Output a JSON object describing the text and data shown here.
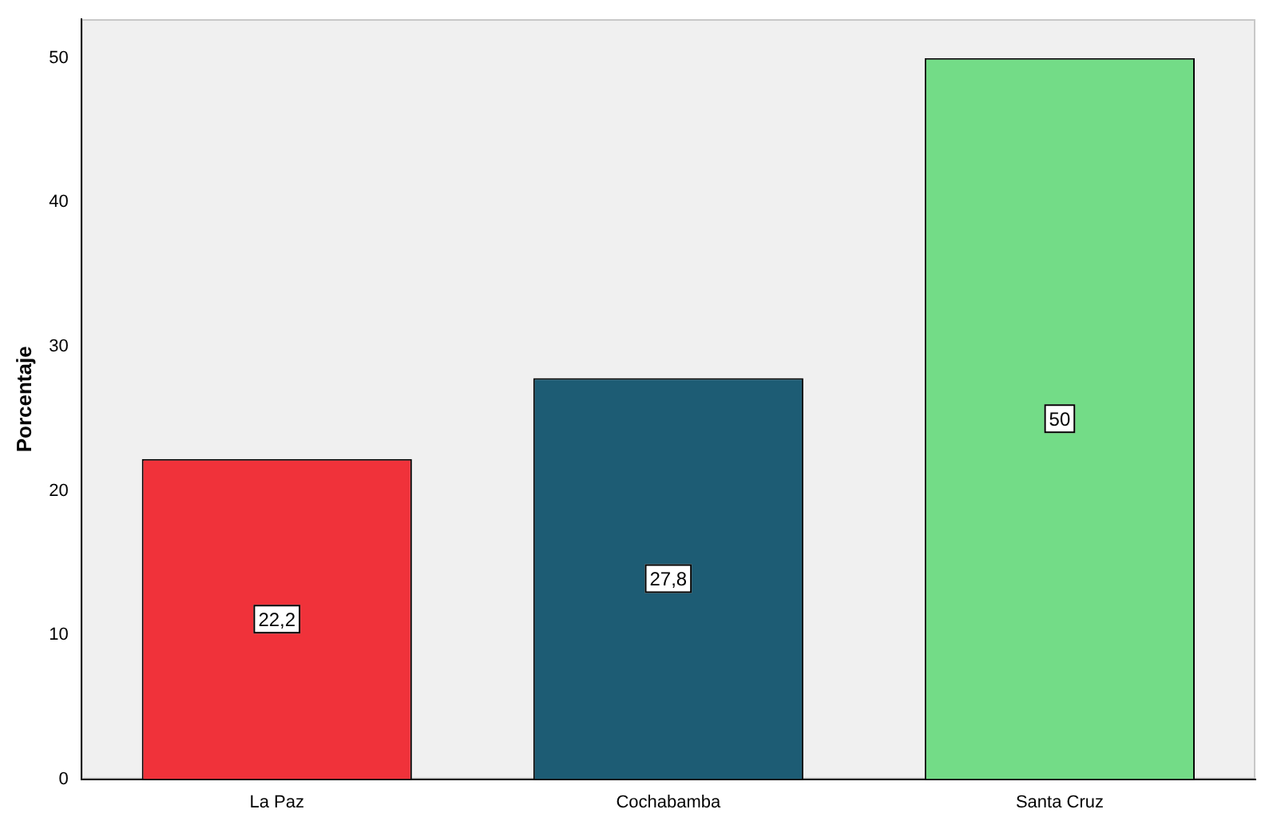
{
  "chart_data": {
    "type": "bar",
    "ylabel": "Porcentaje",
    "categories": [
      "La Paz",
      "Cochabamba",
      "Santa Cruz"
    ],
    "values": [
      22.2,
      27.8,
      50
    ],
    "value_labels": [
      "22,2",
      "27,8",
      "50"
    ],
    "colors": [
      "#f0323a",
      "#1d5c74",
      "#73dc87"
    ],
    "ylim": [
      0,
      52.7
    ],
    "yticks": [
      0,
      10,
      20,
      30,
      40,
      50
    ],
    "grid": false,
    "legend": false
  }
}
